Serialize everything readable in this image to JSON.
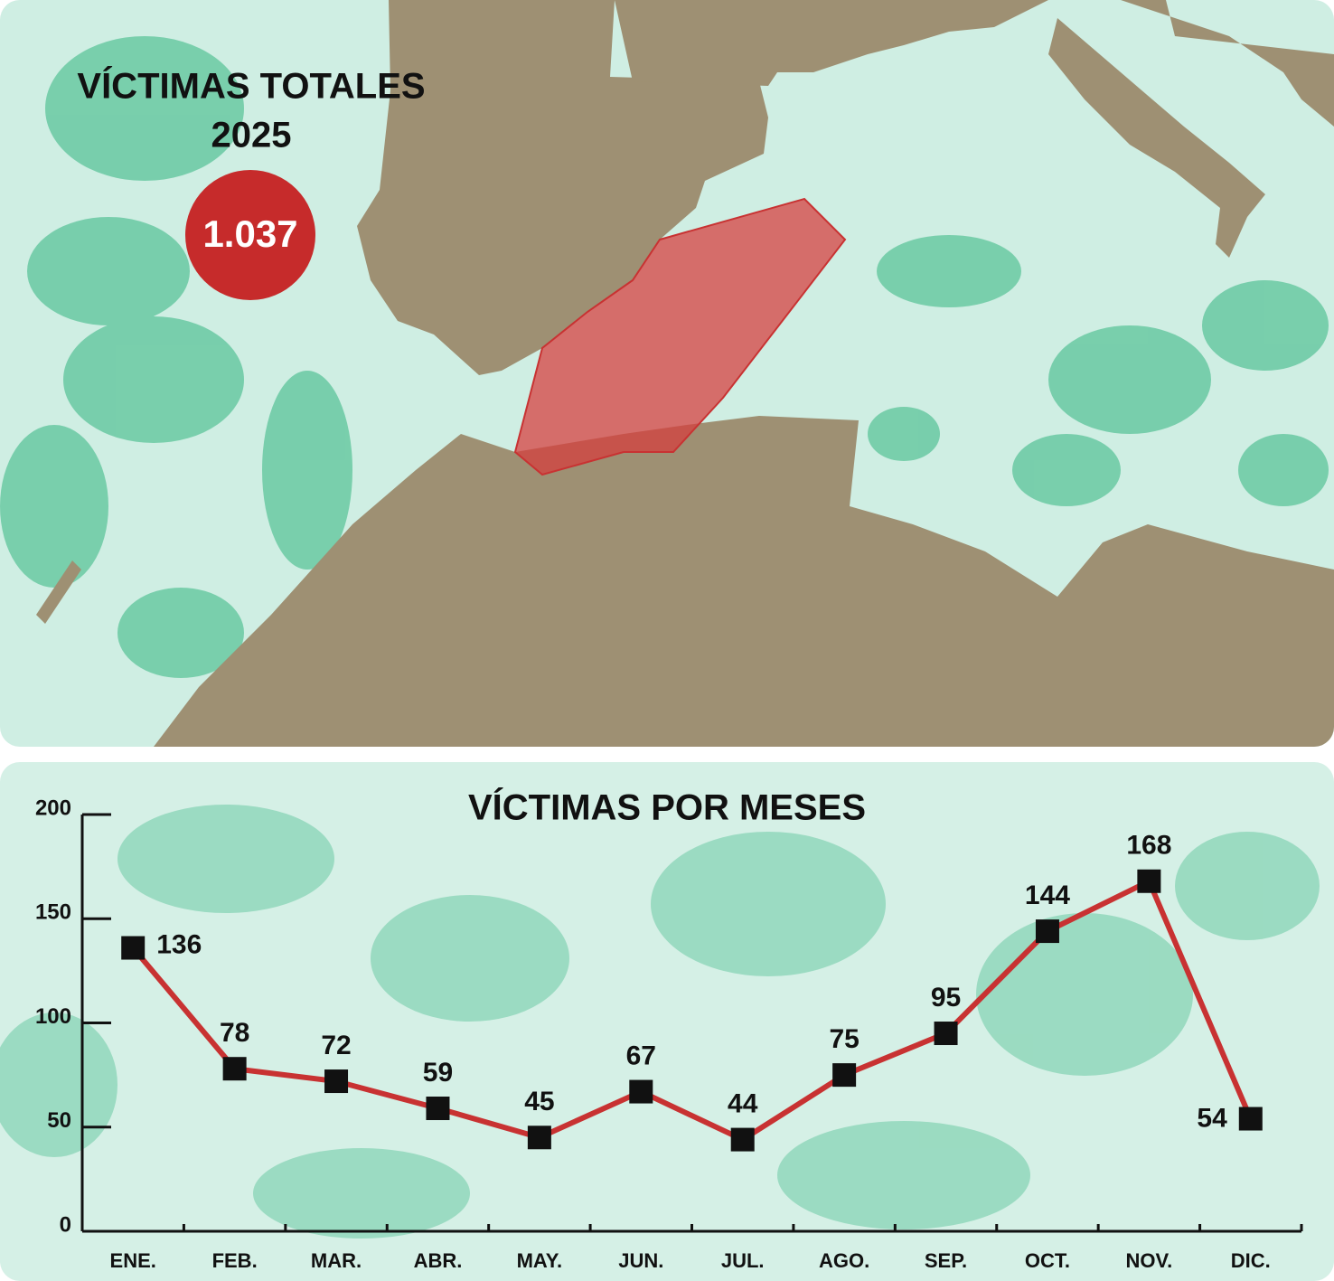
{
  "header": {
    "title": "VÍCTIMAS TOTALES",
    "year": "2025",
    "total": "1.037"
  },
  "chart_data": {
    "type": "line",
    "title": "VÍCTIMAS POR MESES",
    "categories": [
      "ENE.",
      "FEB.",
      "MAR.",
      "ABR.",
      "MAY.",
      "JUN.",
      "JUL.",
      "AGO.",
      "SEP.",
      "OCT.",
      "NOV.",
      "DIC."
    ],
    "series": [
      {
        "name": "Víctimas",
        "color": "#c83232",
        "values": [
          136,
          78,
          72,
          59,
          45,
          67,
          44,
          75,
          95,
          144,
          168,
          54
        ]
      }
    ],
    "ylim": [
      0,
      200
    ],
    "yticks": [
      0,
      50,
      100,
      150,
      200
    ]
  }
}
